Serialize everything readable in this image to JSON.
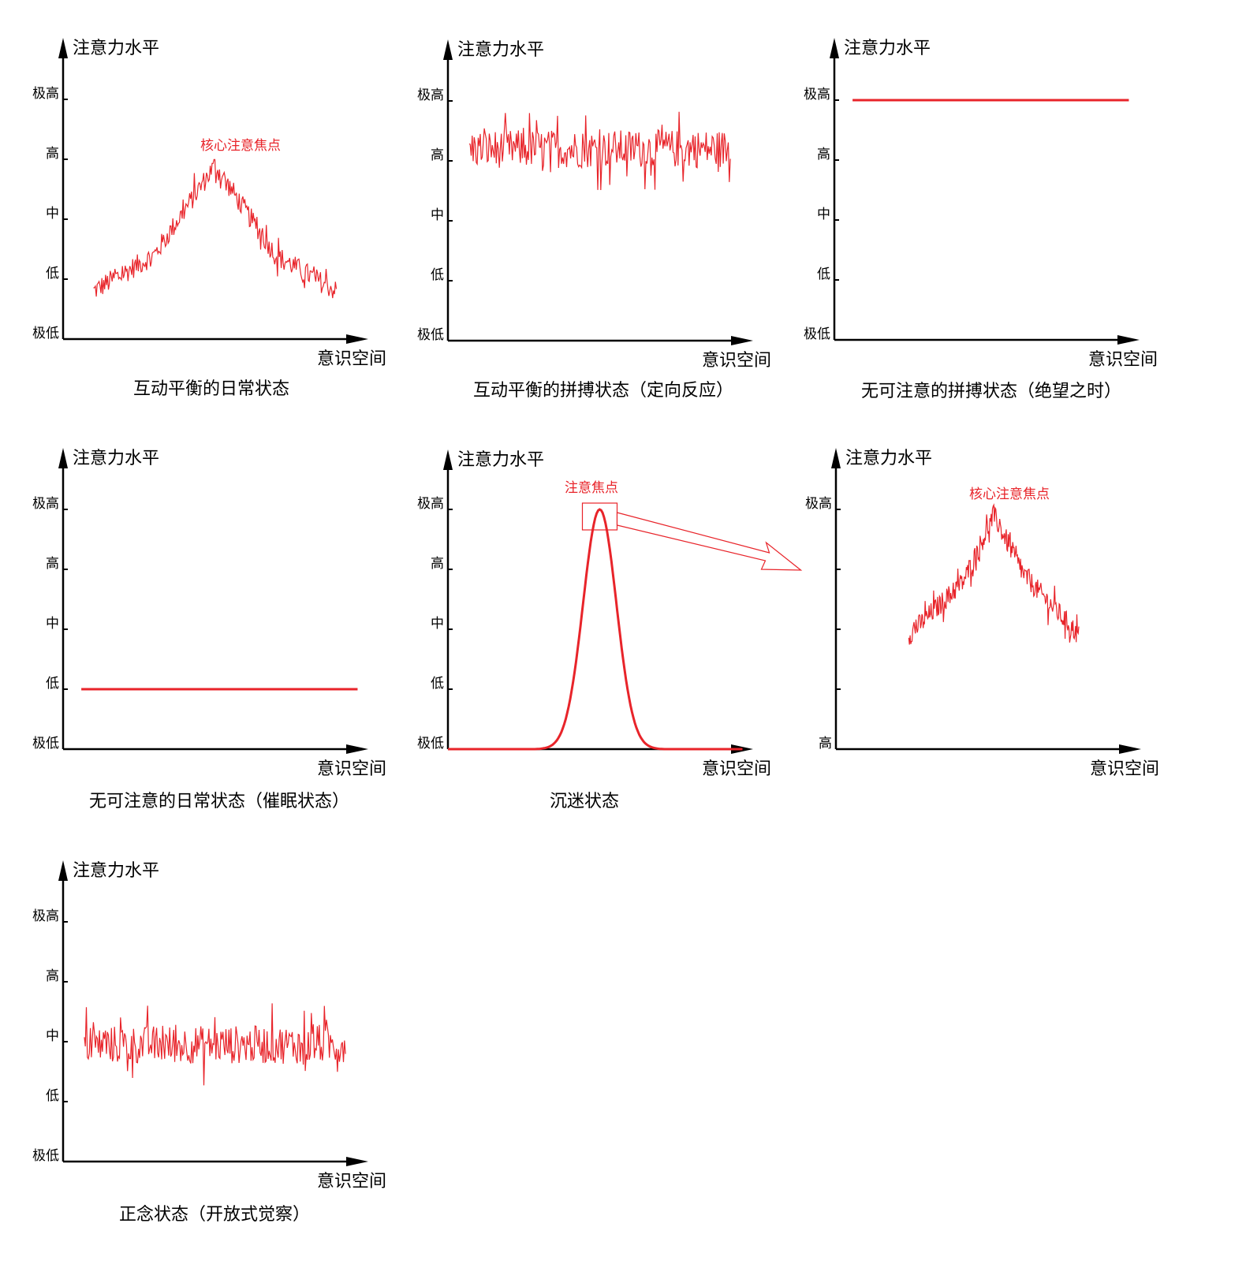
{
  "charts": [
    {
      "id": "daily-balanced",
      "caption": "互动平衡的日常状态",
      "ylabel": "注意力水平",
      "xlabel": "意识空间",
      "levels": [
        "极低",
        "低",
        "中",
        "高",
        "极高"
      ],
      "curve": "noisy-peak",
      "curve_points": [
        [
          0.1,
          0.8
        ],
        [
          0.3,
          1.4
        ],
        [
          0.5,
          2.9
        ],
        [
          0.7,
          1.4
        ],
        [
          0.9,
          0.8
        ]
      ],
      "annotation": "核心注意焦点"
    },
    {
      "id": "struggle-balanced",
      "caption": "互动平衡的拼搏状态（定向反应）",
      "ylabel": "注意力水平",
      "xlabel": "意识空间",
      "levels": [
        "极低",
        "低",
        "中",
        "高",
        "极高"
      ],
      "curve": "noisy-flat",
      "curve_points": [
        [
          0.07,
          3.2
        ],
        [
          0.93,
          3.2
        ]
      ],
      "annotation": ""
    },
    {
      "id": "struggle-despair",
      "caption": "无可注意的拼搏状态（绝望之时）",
      "ylabel": "注意力水平",
      "xlabel": "意识空间",
      "levels": [
        "极低",
        "低",
        "中",
        "高",
        "极高"
      ],
      "curve": "flat",
      "curve_points": [
        [
          0.06,
          4.0
        ],
        [
          0.97,
          4.0
        ]
      ],
      "annotation": ""
    },
    {
      "id": "daily-hypnosis",
      "caption": "无可注意的日常状态（催眠状态）",
      "ylabel": "注意力水平",
      "xlabel": "意识空间",
      "levels": [
        "极低",
        "低",
        "中",
        "高",
        "极高"
      ],
      "curve": "flat",
      "curve_points": [
        [
          0.06,
          1.0
        ],
        [
          0.97,
          1.0
        ]
      ],
      "annotation": ""
    },
    {
      "id": "immersion",
      "caption": "沉迷状态",
      "ylabel": "注意力水平",
      "xlabel": "意识空间",
      "levels": [
        "极低",
        "低",
        "中",
        "高",
        "极高"
      ],
      "curve": "gaussian-peak",
      "curve_points": [
        [
          0.0,
          0.0
        ],
        [
          0.28,
          0.0
        ],
        [
          0.5,
          4.0
        ],
        [
          0.72,
          0.0
        ],
        [
          0.97,
          0.0
        ]
      ],
      "annotation": "注意焦点"
    },
    {
      "id": "zoomed",
      "caption": "",
      "ylabel": "注意力水平",
      "xlabel": "意识空间",
      "levels": [
        "高",
        "",
        "",
        "",
        "极高"
      ],
      "curve": "noisy-peak",
      "curve_points": [
        [
          0.24,
          1.9
        ],
        [
          0.42,
          2.8
        ],
        [
          0.52,
          3.9
        ],
        [
          0.62,
          2.9
        ],
        [
          0.8,
          1.9
        ]
      ],
      "annotation": "核心注意焦点"
    },
    {
      "id": "mindfulness",
      "caption": "正念状态（开放式觉察）",
      "ylabel": "注意力水平",
      "xlabel": "意识空间",
      "levels": [
        "极低",
        "低",
        "中",
        "高",
        "极高"
      ],
      "curve": "noisy-flat",
      "curve_points": [
        [
          0.07,
          1.95
        ],
        [
          0.93,
          1.95
        ]
      ],
      "annotation": ""
    }
  ],
  "colors": {
    "axis": "#000000",
    "curve": "#e8242a"
  }
}
